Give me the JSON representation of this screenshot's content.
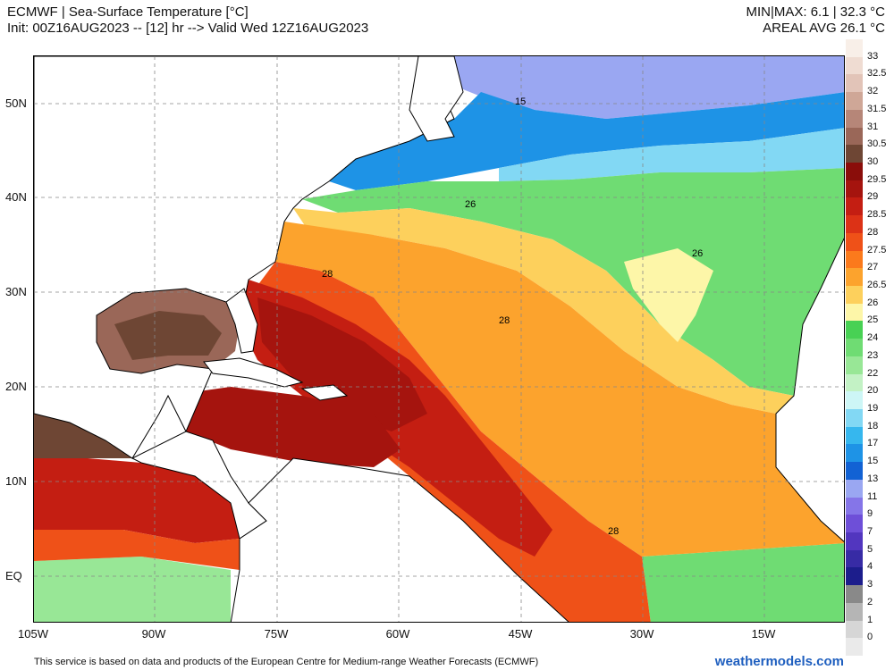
{
  "header": {
    "title": "ECMWF | Sea-Surface Temperature [°C]",
    "init": "Init: 00Z16AUG2023 -- [12] hr --> Valid Wed 12Z16AUG2023",
    "minmax": "MIN|MAX: 6.1 | 32.3 °C",
    "areal_avg": "AREAL AVG 26.1 °C"
  },
  "lat_labels": [
    "50N",
    "40N",
    "30N",
    "20N",
    "10N",
    "EQ"
  ],
  "lon_labels": [
    "105W",
    "90W",
    "75W",
    "60W",
    "45W",
    "30W",
    "15W"
  ],
  "contour_labels": [
    "15",
    "26",
    "26",
    "28",
    "28",
    "28"
  ],
  "colorbar": {
    "levels": [
      "33",
      "32.5",
      "32",
      "31.5",
      "31",
      "30.5",
      "30",
      "29.5",
      "29",
      "28.5",
      "28",
      "27.5",
      "27",
      "26.5",
      "26",
      "25",
      "24",
      "23",
      "22",
      "20",
      "19",
      "18",
      "17",
      "15",
      "13",
      "11",
      "9",
      "7",
      "5",
      "4",
      "3",
      "2",
      "1",
      "0"
    ],
    "colors": [
      "#f8efe8",
      "#efdcd2",
      "#e2c4b8",
      "#cfa797",
      "#b68678",
      "#9a6758",
      "#6e4634",
      "#8a0d0a",
      "#a5140e",
      "#c41e12",
      "#dc3216",
      "#ef5118",
      "#fb7a1c",
      "#fca32d",
      "#fdd05c",
      "#fdf6a8",
      "#48d154",
      "#6fdc73",
      "#98e796",
      "#c3f2c5",
      "#cdf6f6",
      "#82d8f4",
      "#36b7ee",
      "#1e93e6",
      "#1262d4",
      "#9aa7f2",
      "#8575e8",
      "#6e4fd8",
      "#5236bf",
      "#372ba5",
      "#1c1d8c",
      "#898989",
      "#b5b5b5",
      "#d6d6d6",
      "#eaeaea"
    ]
  },
  "footer": {
    "credit": "This service is based on data and products of the European Centre for Medium-range Weather Forecasts (ECMWF)",
    "site": "weathermodels.com"
  }
}
